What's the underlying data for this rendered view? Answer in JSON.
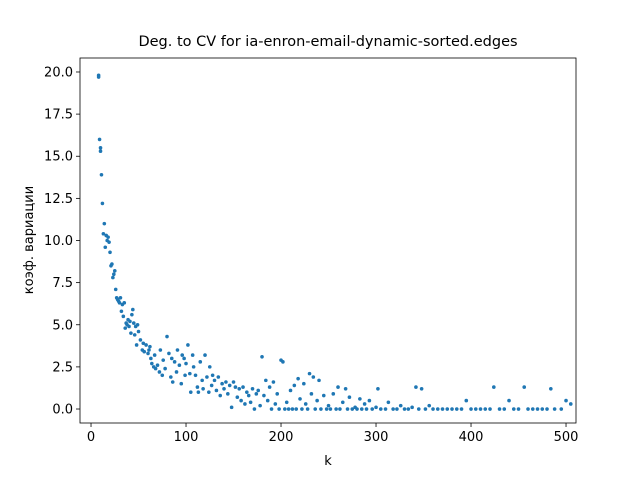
{
  "chart_data": {
    "type": "scatter",
    "title": "Deg. to CV for ia-enron-email-dynamic-sorted.edges",
    "xlabel": "k",
    "ylabel": "коэф. вариации",
    "color": "#1f77b4",
    "xlim": [
      -11.6,
      510.5
    ],
    "ylim": [
      -0.83,
      20.83
    ],
    "xticks": [
      0,
      100,
      200,
      300,
      400,
      500
    ],
    "yticks": [
      {
        "value": 0,
        "label": "0.0"
      },
      2.5,
      {
        "value": 5,
        "label": "5.0"
      },
      7.5,
      {
        "value": 10,
        "label": "10.0"
      },
      12.5,
      {
        "value": 15,
        "label": "15.0"
      },
      17.5,
      {
        "value": 20,
        "label": "20.0"
      }
    ],
    "x": [
      8,
      8,
      9,
      10,
      10,
      11,
      12,
      13,
      14,
      15,
      16,
      17,
      18,
      19,
      20,
      21,
      22,
      23,
      24,
      25,
      26,
      27,
      28,
      29,
      30,
      31,
      32,
      33,
      34,
      35,
      36,
      37,
      38,
      39,
      40,
      41,
      42,
      43,
      44,
      45,
      46,
      47,
      48,
      49,
      50,
      52,
      54,
      55,
      56,
      58,
      60,
      61,
      62,
      63,
      64,
      66,
      67,
      68,
      70,
      72,
      73,
      75,
      76,
      78,
      80,
      82,
      84,
      85,
      86,
      88,
      90,
      91,
      93,
      95,
      96,
      98,
      99,
      100,
      102,
      104,
      105,
      107,
      108,
      110,
      112,
      113,
      115,
      117,
      118,
      120,
      122,
      124,
      125,
      127,
      128,
      130,
      132,
      134,
      136,
      138,
      140,
      142,
      144,
      146,
      148,
      150,
      152,
      154,
      156,
      158,
      160,
      162,
      164,
      166,
      168,
      170,
      172,
      174,
      176,
      178,
      180,
      182,
      184,
      186,
      188,
      190,
      192,
      194,
      196,
      198,
      200,
      202,
      204,
      206,
      208,
      210,
      212,
      214,
      216,
      218,
      220,
      222,
      224,
      226,
      228,
      230,
      232,
      234,
      236,
      238,
      240,
      242,
      245,
      248,
      250,
      252,
      255,
      258,
      260,
      262,
      265,
      268,
      270,
      272,
      275,
      278,
      280,
      283,
      285,
      288,
      290,
      293,
      296,
      300,
      302,
      305,
      310,
      313,
      318,
      322,
      326,
      330,
      334,
      338,
      342,
      345,
      348,
      352,
      356,
      360,
      365,
      370,
      375,
      380,
      385,
      390,
      395,
      400,
      405,
      410,
      415,
      420,
      424,
      430,
      435,
      440,
      445,
      450,
      456,
      460,
      465,
      470,
      475,
      480,
      484,
      488,
      495,
      500,
      505
    ],
    "y": [
      19.8,
      19.7,
      16.0,
      15.5,
      15.3,
      13.9,
      12.2,
      10.4,
      11.0,
      9.6,
      10.3,
      10.0,
      10.2,
      9.9,
      9.3,
      8.5,
      8.6,
      7.8,
      8.0,
      8.2,
      7.1,
      6.6,
      6.5,
      6.4,
      6.3,
      6.6,
      5.8,
      6.2,
      5.5,
      6.3,
      4.8,
      5.1,
      5.0,
      5.3,
      4.9,
      5.2,
      4.5,
      5.6,
      5.9,
      5.1,
      4.4,
      4.9,
      3.8,
      5.0,
      4.6,
      4.1,
      3.5,
      3.9,
      3.4,
      3.8,
      3.3,
      3.5,
      3.7,
      3.0,
      2.7,
      2.5,
      3.2,
      2.4,
      2.6,
      2.2,
      3.5,
      2.0,
      2.9,
      2.4,
      4.3,
      3.3,
      1.9,
      3.0,
      1.6,
      2.8,
      2.2,
      3.5,
      2.6,
      1.5,
      3.2,
      3.0,
      2.0,
      2.7,
      3.8,
      2.1,
      1.0,
      3.2,
      2.5,
      2.0,
      1.3,
      1.0,
      2.8,
      1.7,
      1.2,
      3.2,
      1.9,
      1.0,
      2.5,
      1.4,
      2.0,
      1.7,
      1.1,
      1.9,
      0.8,
      1.5,
      1.2,
      1.6,
      0.9,
      1.4,
      0.1,
      1.6,
      1.3,
      0.7,
      1.2,
      0.5,
      1.3,
      0.3,
      1.0,
      0.8,
      0.4,
      1.2,
      0.0,
      0.9,
      1.1,
      0.2,
      3.1,
      0.8,
      1.7,
      0.5,
      1.3,
      0.0,
      1.6,
      0.3,
      0.9,
      0.0,
      2.9,
      2.8,
      0.0,
      0.4,
      0.0,
      1.1,
      0.0,
      1.4,
      0.0,
      1.8,
      0.6,
      0.0,
      1.5,
      0.3,
      0.0,
      2.1,
      0.9,
      1.9,
      0.0,
      0.5,
      1.7,
      0.0,
      0.8,
      0.0,
      0.2,
      0.0,
      0.9,
      0.0,
      1.3,
      0.0,
      0.4,
      1.2,
      0.0,
      0.7,
      0.0,
      0.1,
      0.0,
      0.6,
      0.0,
      0.3,
      0.0,
      0.5,
      0.0,
      0.1,
      1.2,
      0.0,
      0.0,
      0.4,
      0.0,
      0.0,
      0.2,
      0.0,
      0.0,
      0.1,
      1.3,
      0.0,
      1.2,
      0.0,
      0.2,
      0.0,
      0.0,
      0.0,
      0.0,
      0.0,
      0.0,
      0.0,
      0.5,
      0.0,
      0.0,
      0.0,
      0.0,
      0.0,
      1.3,
      0.0,
      0.0,
      0.5,
      0.0,
      0.0,
      1.3,
      0.0,
      0.0,
      0.0,
      0.0,
      0.0,
      1.2,
      0.0,
      0.0,
      0.5,
      0.3
    ]
  }
}
